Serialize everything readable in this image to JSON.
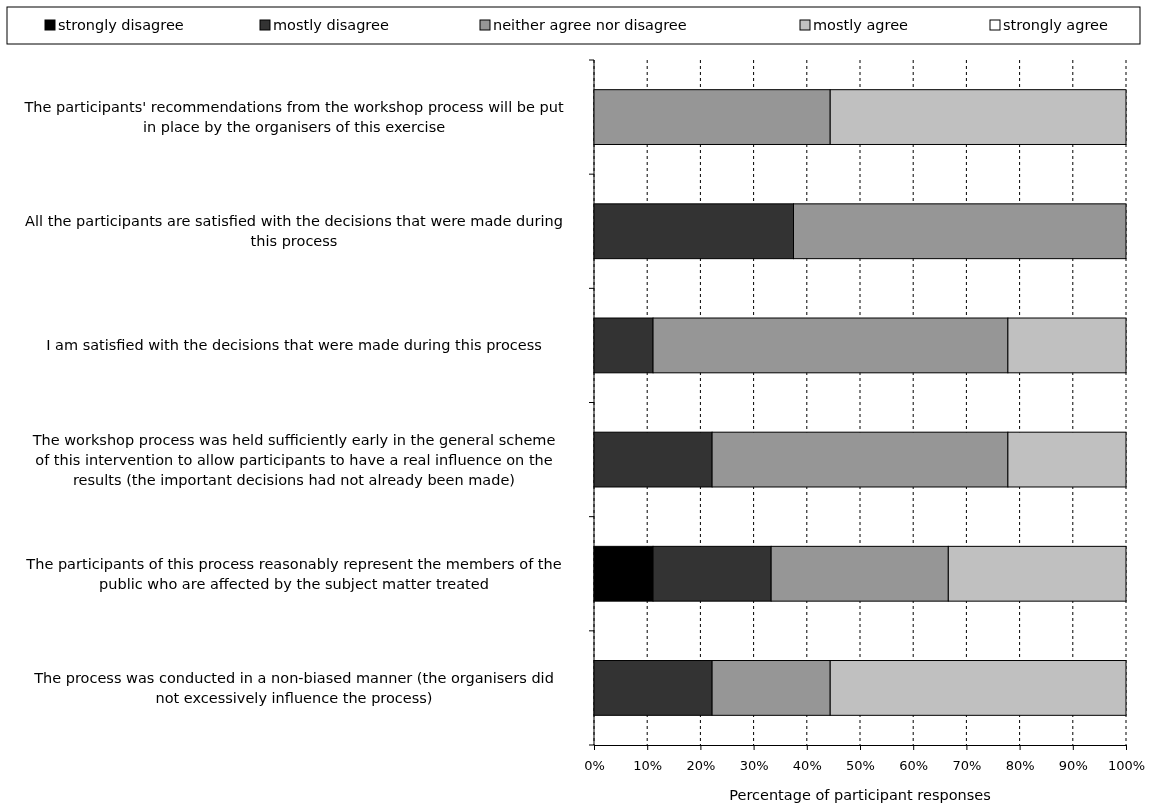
{
  "chart_data": {
    "type": "bar",
    "orientation": "horizontal",
    "stacked": true,
    "xlabel": "Percentage of participant responses",
    "categories": [
      "The participants' recommendations from the workshop process will be put in place by the organisers of this exercise",
      "All the participants are satisfied with the decisions that were made during this process",
      "I am satisfied with the decisions that were made during this process",
      "The workshop process was held sufficiently early in the general scheme of this intervention to allow participants to have a real influence on the results (the important decisions had not already been made)",
      "The participants of this process reasonably represent the members of the public who are affected by the subject matter treated",
      "The process was conducted in a non-biased manner (the organisers did not excessively influence the process)"
    ],
    "series": [
      {
        "name": "strongly disagree",
        "color": "#000000",
        "values": [
          0,
          0,
          0,
          0,
          11.1,
          0
        ]
      },
      {
        "name": "mostly disagree",
        "color": "#333333",
        "values": [
          0,
          37.5,
          11.1,
          22.2,
          22.2,
          22.2
        ]
      },
      {
        "name": "neither agree nor disagree",
        "color": "#969696",
        "values": [
          44.4,
          62.5,
          66.7,
          55.6,
          33.3,
          22.2
        ]
      },
      {
        "name": "mostly agree",
        "color": "#c0c0c0",
        "values": [
          55.6,
          0,
          22.2,
          22.2,
          33.4,
          55.6
        ]
      },
      {
        "name": "strongly agree",
        "color": "#ffffff",
        "values": [
          0,
          0,
          0,
          0,
          0,
          0
        ]
      }
    ],
    "xlim": [
      0,
      100
    ],
    "xticks": [
      {
        "value": 0,
        "label": "0%"
      },
      {
        "value": 10,
        "label": "10%"
      },
      {
        "value": 20,
        "label": "20%"
      },
      {
        "value": 30,
        "label": "30%"
      },
      {
        "value": 40,
        "label": "40%"
      },
      {
        "value": 50,
        "label": "50%"
      },
      {
        "value": 60,
        "label": "60%"
      },
      {
        "value": 70,
        "label": "70%"
      },
      {
        "value": 80,
        "label": "80%"
      },
      {
        "value": 90,
        "label": "90%"
      },
      {
        "value": 100,
        "label": "100%"
      }
    ],
    "grid": "x",
    "legend": "top"
  }
}
